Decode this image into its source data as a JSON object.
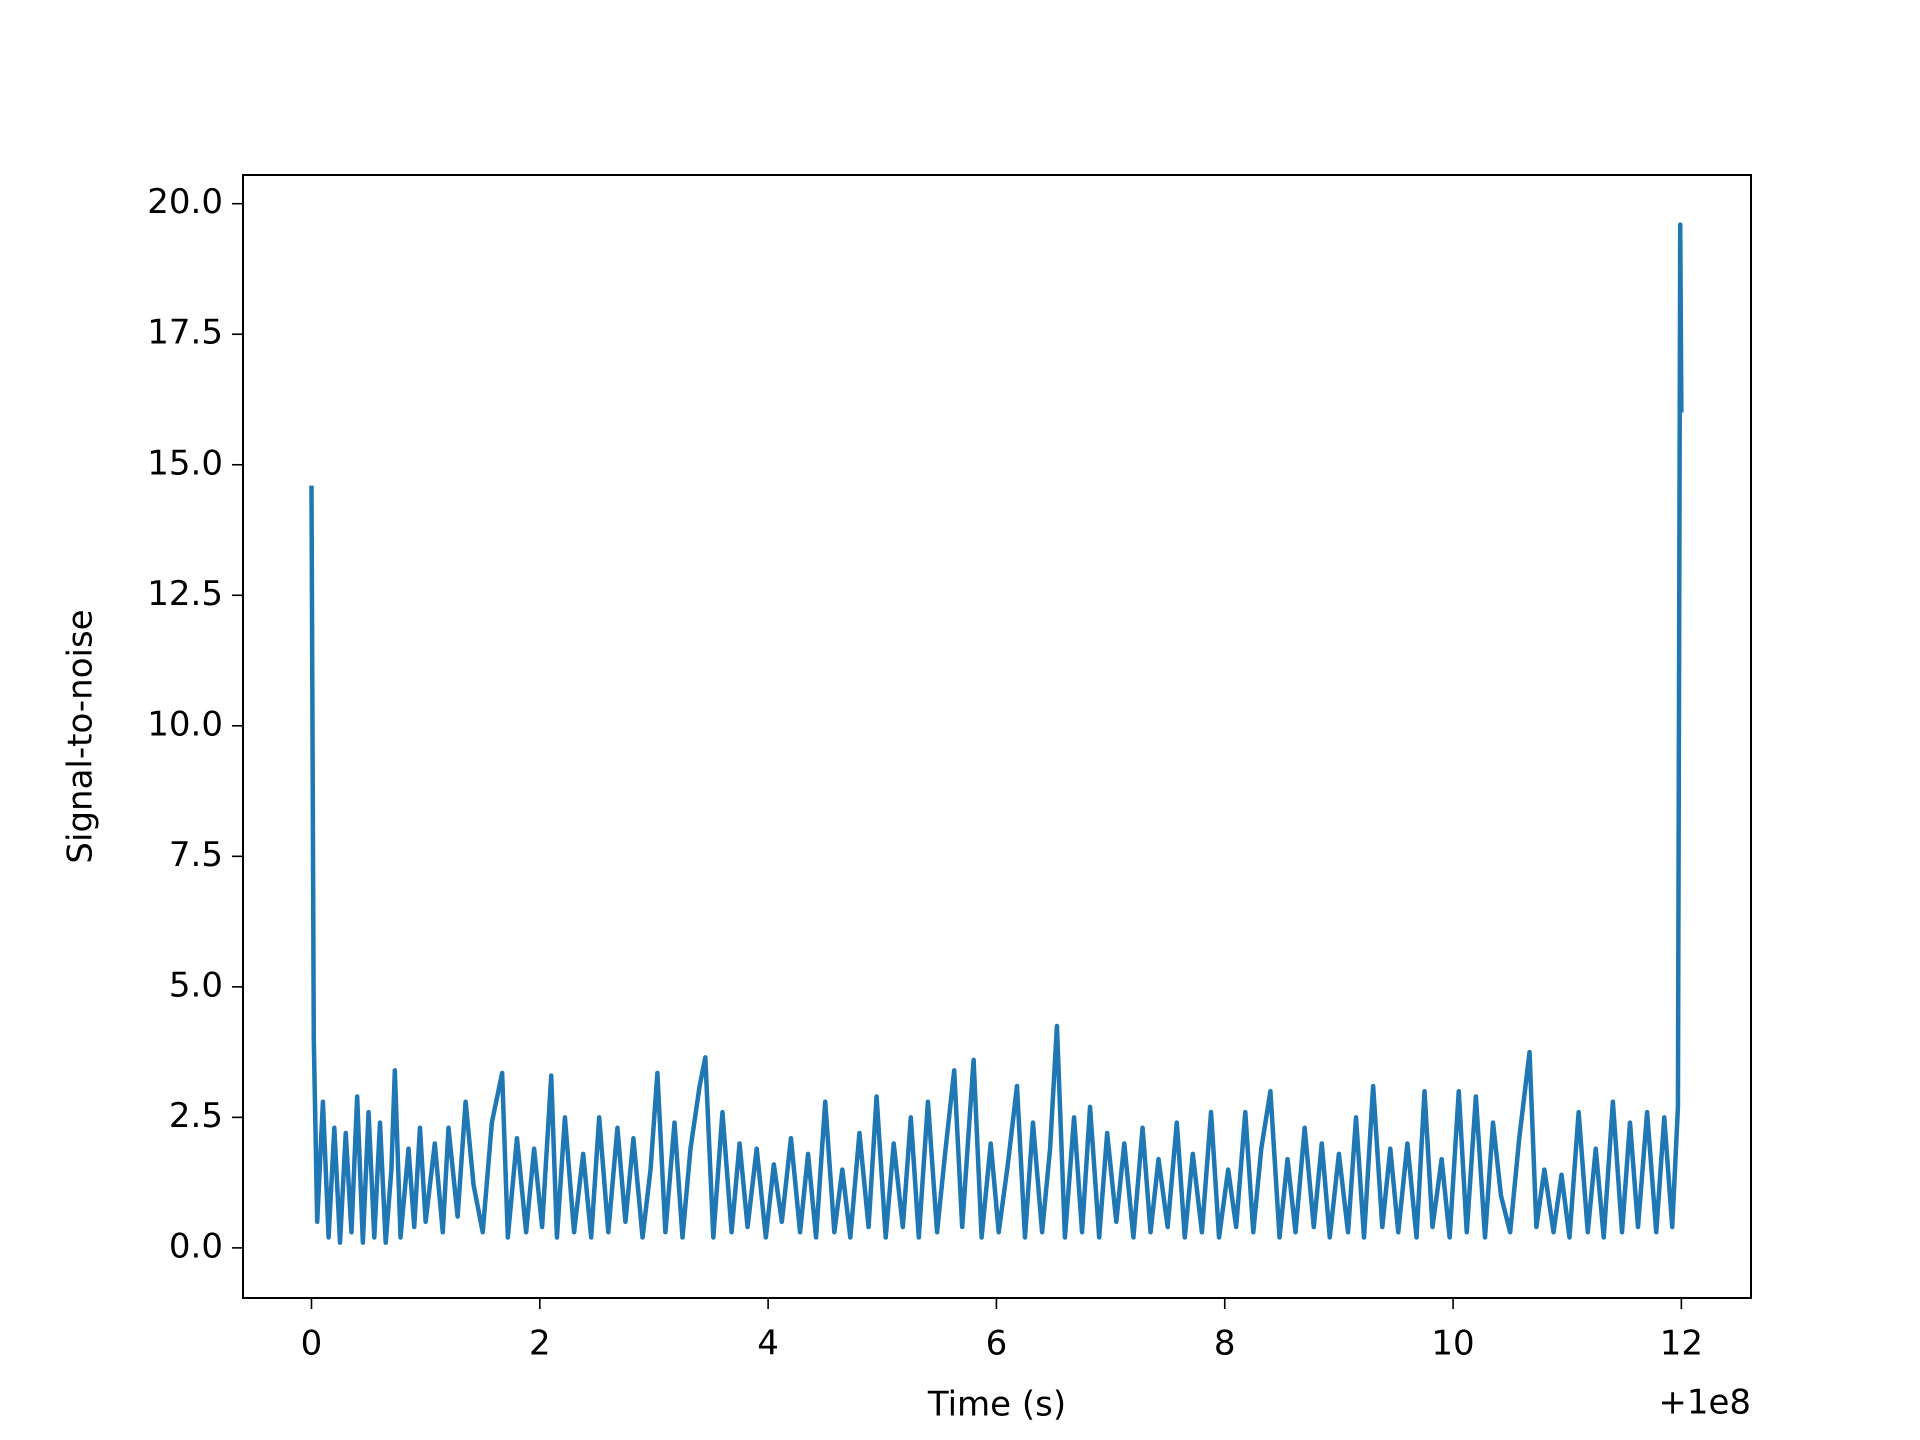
{
  "chart_data": {
    "type": "line",
    "xlabel": "Time (s)",
    "ylabel": "Signal-to-noise",
    "x_offset_label": "+1e8",
    "color": "#1f77b4",
    "x": [
      0,
      0.02,
      0.05,
      0.1,
      0.15,
      0.2,
      0.25,
      0.3,
      0.35,
      0.4,
      0.45,
      0.5,
      0.55,
      0.6,
      0.65,
      0.7,
      0.73,
      0.78,
      0.85,
      0.9,
      0.95,
      1.0,
      1.08,
      1.15,
      1.2,
      1.28,
      1.35,
      1.42,
      1.5,
      1.58,
      1.67,
      1.72,
      1.8,
      1.88,
      1.95,
      2.02,
      2.1,
      2.15,
      2.22,
      2.3,
      2.38,
      2.45,
      2.52,
      2.6,
      2.68,
      2.75,
      2.82,
      2.9,
      2.97,
      3.03,
      3.1,
      3.18,
      3.25,
      3.32,
      3.4,
      3.45,
      3.52,
      3.6,
      3.68,
      3.75,
      3.82,
      3.9,
      3.98,
      4.05,
      4.12,
      4.2,
      4.28,
      4.35,
      4.42,
      4.5,
      4.58,
      4.65,
      4.72,
      4.8,
      4.88,
      4.95,
      5.03,
      5.1,
      5.18,
      5.25,
      5.32,
      5.4,
      5.48,
      5.55,
      5.63,
      5.7,
      5.8,
      5.87,
      5.95,
      6.02,
      6.1,
      6.18,
      6.25,
      6.32,
      6.4,
      6.47,
      6.53,
      6.6,
      6.68,
      6.75,
      6.82,
      6.9,
      6.97,
      7.05,
      7.12,
      7.2,
      7.28,
      7.35,
      7.42,
      7.5,
      7.58,
      7.65,
      7.72,
      7.8,
      7.88,
      7.95,
      8.03,
      8.1,
      8.18,
      8.25,
      8.32,
      8.4,
      8.48,
      8.55,
      8.62,
      8.7,
      8.78,
      8.85,
      8.92,
      9.0,
      9.08,
      9.15,
      9.22,
      9.3,
      9.38,
      9.45,
      9.52,
      9.6,
      9.68,
      9.75,
      9.82,
      9.9,
      9.97,
      10.05,
      10.12,
      10.2,
      10.28,
      10.35,
      10.42,
      10.5,
      10.58,
      10.67,
      10.73,
      10.8,
      10.88,
      10.95,
      11.02,
      11.1,
      11.18,
      11.25,
      11.32,
      11.4,
      11.48,
      11.55,
      11.62,
      11.7,
      11.78,
      11.85,
      11.92,
      11.97,
      11.99,
      12.0
    ],
    "values": [
      14.6,
      4.0,
      0.5,
      2.8,
      0.2,
      2.3,
      0.1,
      2.2,
      0.3,
      2.9,
      0.1,
      2.6,
      0.2,
      2.4,
      0.1,
      1.5,
      3.4,
      0.2,
      1.9,
      0.4,
      2.3,
      0.5,
      2.0,
      0.3,
      2.3,
      0.6,
      2.8,
      1.2,
      0.3,
      2.4,
      3.35,
      0.2,
      2.1,
      0.3,
      1.9,
      0.4,
      3.3,
      0.2,
      2.5,
      0.3,
      1.8,
      0.2,
      2.5,
      0.3,
      2.3,
      0.5,
      2.1,
      0.2,
      1.5,
      3.35,
      0.3,
      2.4,
      0.2,
      1.9,
      3.1,
      3.65,
      0.2,
      2.6,
      0.3,
      2.0,
      0.4,
      1.9,
      0.2,
      1.6,
      0.5,
      2.1,
      0.3,
      1.8,
      0.2,
      2.8,
      0.3,
      1.5,
      0.2,
      2.2,
      0.4,
      2.9,
      0.2,
      2.0,
      0.4,
      2.5,
      0.2,
      2.8,
      0.3,
      1.8,
      3.4,
      0.4,
      3.6,
      0.2,
      2.0,
      0.3,
      1.6,
      3.1,
      0.2,
      2.4,
      0.3,
      1.9,
      4.25,
      0.2,
      2.5,
      0.3,
      2.7,
      0.2,
      2.2,
      0.5,
      2.0,
      0.2,
      2.3,
      0.3,
      1.7,
      0.4,
      2.4,
      0.2,
      1.8,
      0.3,
      2.6,
      0.2,
      1.5,
      0.4,
      2.6,
      0.3,
      1.9,
      3.0,
      0.2,
      1.7,
      0.3,
      2.3,
      0.4,
      2.0,
      0.2,
      1.8,
      0.3,
      2.5,
      0.2,
      3.1,
      0.4,
      1.9,
      0.3,
      2.0,
      0.2,
      3.0,
      0.4,
      1.7,
      0.2,
      3.0,
      0.3,
      2.9,
      0.2,
      2.4,
      1.0,
      0.3,
      2.1,
      3.75,
      0.4,
      1.5,
      0.3,
      1.4,
      0.2,
      2.6,
      0.3,
      1.9,
      0.2,
      2.8,
      0.3,
      2.4,
      0.4,
      2.6,
      0.3,
      2.5,
      0.4,
      2.7,
      19.6,
      16.0
    ],
    "xlim": [
      -0.6,
      12.61
    ],
    "ylim": [
      -0.96,
      20.55
    ],
    "xticks": [
      0,
      2,
      4,
      6,
      8,
      10,
      12
    ],
    "yticks": [
      {
        "value": 0,
        "label": "0.0"
      },
      2.5,
      {
        "value": 5,
        "label": "5.0"
      },
      7.5,
      {
        "value": 10,
        "label": "10.0"
      },
      12.5,
      {
        "value": 15,
        "label": "15.0"
      },
      17.5,
      {
        "value": 20,
        "label": "20.0"
      }
    ]
  }
}
